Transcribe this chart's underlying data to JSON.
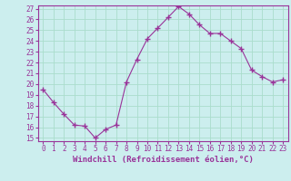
{
  "x": [
    0,
    1,
    2,
    3,
    4,
    5,
    6,
    7,
    8,
    9,
    10,
    11,
    12,
    13,
    14,
    15,
    16,
    17,
    18,
    19,
    20,
    21,
    22,
    23
  ],
  "y": [
    19.5,
    18.3,
    17.2,
    16.2,
    16.1,
    15.0,
    15.8,
    16.2,
    20.2,
    22.3,
    24.2,
    25.2,
    26.2,
    27.2,
    26.5,
    25.5,
    24.7,
    24.7,
    24.0,
    23.3,
    21.3,
    20.7,
    20.2,
    20.4
  ],
  "line_color": "#993399",
  "marker": "+",
  "marker_size": 4,
  "bg_color": "#cceeee",
  "grid_color": "#aaddcc",
  "xlabel": "Windchill (Refroidissement éolien,°C)",
  "xlabel_color": "#993399",
  "tick_color": "#993399",
  "ylim": [
    15,
    27
  ],
  "xlim": [
    -0.5,
    23.5
  ],
  "yticks": [
    15,
    16,
    17,
    18,
    19,
    20,
    21,
    22,
    23,
    24,
    25,
    26,
    27
  ],
  "xticks": [
    0,
    1,
    2,
    3,
    4,
    5,
    6,
    7,
    8,
    9,
    10,
    11,
    12,
    13,
    14,
    15,
    16,
    17,
    18,
    19,
    20,
    21,
    22,
    23
  ],
  "tick_fontsize": 5.5,
  "xlabel_fontsize": 6.5,
  "label_font": "monospace"
}
